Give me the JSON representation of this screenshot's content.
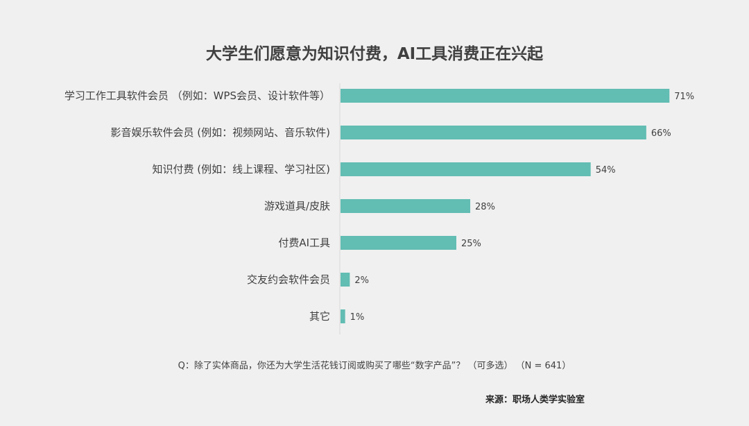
{
  "chart_data": {
    "type": "bar",
    "orientation": "horizontal",
    "title": "大学生们愿意为知识付费，AI工具消费正在兴起",
    "categories": [
      "学习工作工具软件会员 （例如：WPS会员、设计软件等）",
      "影音娱乐软件会员 (例如：视频网站、音乐软件)",
      "知识付费 (例如：线上课程、学习社区)",
      "游戏道具/皮肤",
      "付费AI工具",
      "交友约会软件会员",
      "其它"
    ],
    "values": [
      71,
      66,
      54,
      28,
      25,
      2,
      1
    ],
    "value_labels": [
      "71%",
      "66%",
      "54%",
      "28%",
      "25%",
      "2%",
      "1%"
    ],
    "unit": "%",
    "xlim": [
      0,
      100
    ],
    "bar_color": "#62bdb3",
    "grid": false
  },
  "question": "Q：除了实体商品，你还为大学生活花钱订阅或购买了哪些“数字产品”？ （可多选） （N = 641）",
  "source": "来源：职场人类学实验室"
}
